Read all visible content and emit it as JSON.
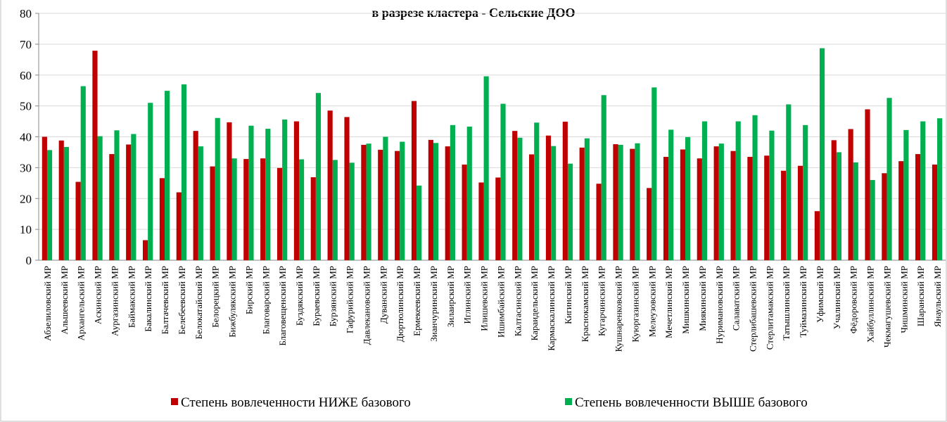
{
  "chart_data": {
    "type": "bar",
    "title": "в разрезе кластера - Сельские ДОО",
    "categories": [
      "Абзелиловский МР",
      "Альшеевский МР",
      "Архангельский МР",
      "Аскинский МР",
      "Аургазинский МР",
      "Баймакский МР",
      "Бакалинский МР",
      "Балтачевский МР",
      "Белебеевский МР",
      "Белокатайский МР",
      "Белорецкий МР",
      "Бижбулякский МР",
      "Бирский МР",
      "Благоварский МР",
      "Благовещенский МР",
      "Буздякский МР",
      "Бураевский МР",
      "Бурзянский МР",
      "Гафурийский МР",
      "Давлекановский МР",
      "Дуванский МР",
      "Дюртюлинский МР",
      "Ермекеевский МР",
      "Зианчуринский МР",
      "Зилаирский МР",
      "Иглинский МР",
      "Илишевский МР",
      "Ишимбайский МР",
      "Калтасинский МР",
      "Караидельский МР",
      "Кармаскалинский МР",
      "Кигинский МР",
      "Краснокамский МР",
      "Кугарчинский МР",
      "Кушнаренковский МР",
      "Куюргазинский МР",
      "Мелеузовский МР",
      "Мечетлинский МР",
      "Мишкинский МР",
      "Миякинский МР",
      "Нуримановский МР",
      "Салаватский МР",
      "Стерлибашевский МР",
      "Стерлитамакский МР",
      "Татышлинский МР",
      "Туймазинский МР",
      "Уфимский МР",
      "Учалинский МР",
      "Фёдоровский МР",
      "Хайбуллинский МР",
      "Чекмагушевский МР",
      "Чишминский МР",
      "Шаранский МР",
      "Янаульский МР"
    ],
    "series": [
      {
        "name": "Степень вовлеченности НИЖЕ базового",
        "color": "#c00000",
        "values": [
          40,
          38.8,
          25.4,
          67.9,
          34.4,
          37.5,
          6.5,
          26.6,
          22,
          41.9,
          30.4,
          44.7,
          32.8,
          33,
          29.9,
          45,
          26.9,
          48.5,
          46.4,
          37.4,
          35.8,
          35.4,
          51.6,
          39,
          36.9,
          31,
          25.2,
          26.8,
          41.9,
          34.3,
          40.4,
          44.9,
          36.5,
          24.8,
          37.6,
          36.1,
          23.4,
          33.5,
          35.9,
          33,
          36.9,
          35.4,
          33.5,
          33.9,
          29,
          30.6,
          15.9,
          38.9,
          42.5,
          48.9,
          28.2,
          32.1,
          34.4,
          31
        ]
      },
      {
        "name": "Степень вовлеченности ВЫШЕ базового",
        "color": "#00b050",
        "values": [
          35.7,
          36.7,
          56.4,
          40.2,
          42.1,
          40.9,
          51,
          54.9,
          57,
          36.9,
          46.1,
          33,
          43.6,
          42.6,
          45.6,
          32.7,
          54.2,
          32.5,
          31.6,
          37.8,
          40,
          38.4,
          24.2,
          38,
          43.8,
          43.3,
          59.6,
          50.7,
          39.7,
          44.6,
          37,
          31.3,
          39.5,
          53.5,
          37.4,
          37.9,
          56,
          42.3,
          39.9,
          45,
          37.8,
          45,
          47,
          42,
          50.5,
          43.8,
          68.7,
          35,
          31.7,
          26,
          52.6,
          42.2,
          45,
          46
        ]
      }
    ],
    "ylim": [
      0,
      80
    ],
    "yticks": [
      0,
      10,
      20,
      30,
      40,
      50,
      60,
      70,
      80
    ],
    "grid": true
  }
}
